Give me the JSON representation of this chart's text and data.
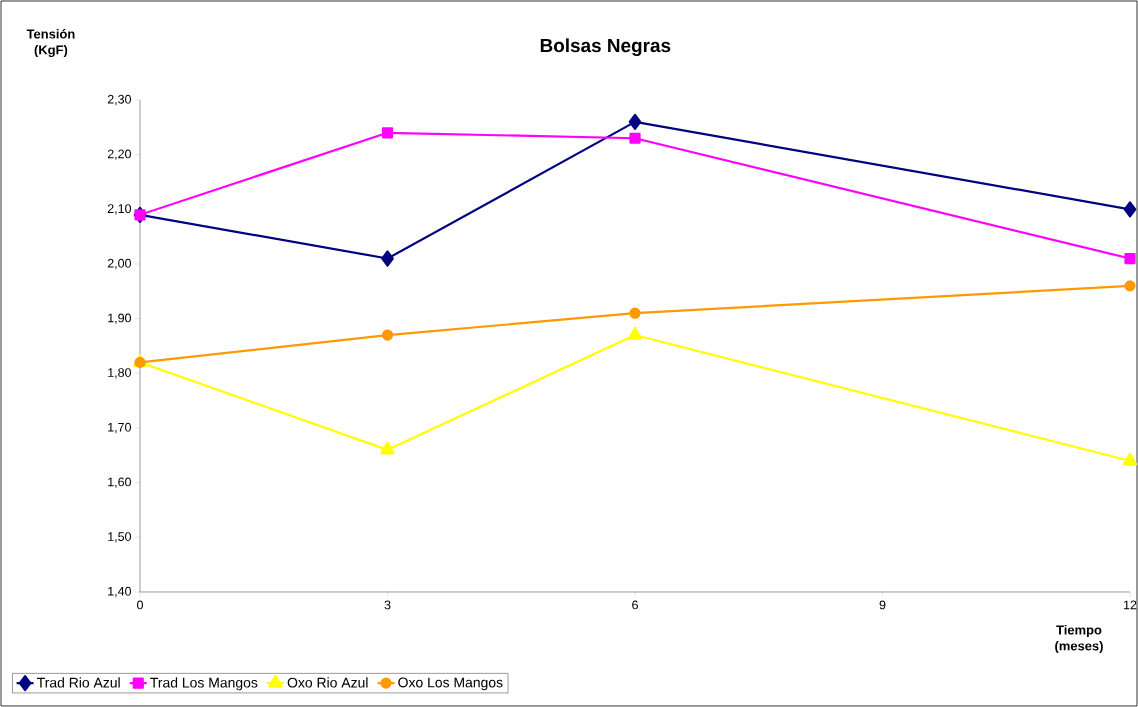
{
  "chart_data": {
    "type": "line",
    "title": "Bolsas Negras",
    "xlabel": "Tiempo (meses)",
    "ylabel": "Tensión (KgF)",
    "x": [
      0,
      3,
      6,
      12
    ],
    "series": [
      {
        "name": "Trad Rio Azul",
        "color": "#000080",
        "marker": "diamond",
        "values": [
          2.09,
          2.01,
          2.26,
          2.1
        ]
      },
      {
        "name": "Trad Los Mangos",
        "color": "#ff00ff",
        "marker": "square",
        "values": [
          2.09,
          2.24,
          2.23,
          2.01
        ]
      },
      {
        "name": "Oxo Rio Azul",
        "color": "#ffff00",
        "marker": "triangle",
        "values": [
          1.82,
          1.66,
          1.87,
          1.64
        ]
      },
      {
        "name": "Oxo Los Mangos",
        "color": "#ff9900",
        "marker": "circle",
        "values": [
          1.82,
          1.87,
          1.91,
          1.96
        ]
      }
    ],
    "xlim": [
      0,
      12
    ],
    "xticks": [
      0,
      3,
      6,
      9,
      12
    ],
    "ylim": [
      1.4,
      2.3
    ],
    "yticks": [
      {
        "value": 1.4,
        "label": "1,40"
      },
      {
        "value": 1.5,
        "label": "1,50"
      },
      {
        "value": 1.6,
        "label": "1,60"
      },
      {
        "value": 1.7,
        "label": "1,70"
      },
      {
        "value": 1.8,
        "label": "1,80"
      },
      {
        "value": 1.9,
        "label": "1,90"
      },
      {
        "value": 2.0,
        "label": "2,00"
      },
      {
        "value": 2.1,
        "label": "2,10"
      },
      {
        "value": 2.2,
        "label": "2,20"
      },
      {
        "value": 2.3,
        "label": "2,30"
      }
    ],
    "grid": false,
    "legend": "bottom",
    "line_style": "solid"
  }
}
